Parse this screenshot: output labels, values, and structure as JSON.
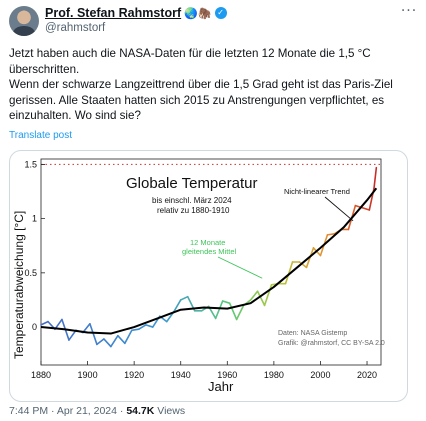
{
  "author": {
    "name": "Prof. Stefan Rahmstorf",
    "emoji": "🌏🦣",
    "verified_icon": "verified-badge-icon",
    "handle": "@rahmstorf"
  },
  "more_icon": "more-options-icon",
  "tweet": {
    "paragraph1": "Jetzt haben auch die NASA-Daten für die letzten 12 Monate die 1,5 °C überschritten.",
    "paragraph2": "Wenn der schwarze Langzeittrend über die 1,5 Grad geht ist das Paris-Ziel gerissen. Alle Staaten hatten sich 2015 zu Anstrengungen verpflichtet, es einzuhalten. Wo sind sie?"
  },
  "translate_label": "Translate post",
  "footer": {
    "time": "7:44 PM · Apr 21, 2024 · ",
    "views_count": "54.7K",
    "views_label": " Views"
  },
  "colors": {
    "link": "#1d9bf0",
    "secondary_text": "#536471",
    "trend_line": "#000000",
    "reference_line": "#d0312d",
    "annotation_green": "#3ec45a"
  },
  "chart_data": {
    "type": "line",
    "title": "Globale Temperatur",
    "subtitle": [
      "bis einschl. März 2024",
      "relativ zu 1880-1910"
    ],
    "xlabel": "Jahr",
    "ylabel": "Temperaturabweichung [°C]",
    "xlim": [
      1880,
      2026
    ],
    "ylim": [
      -0.35,
      1.55
    ],
    "x_ticks": [
      1880,
      1900,
      1920,
      1940,
      1960,
      1980,
      2000,
      2020
    ],
    "y_ticks": [
      0,
      0.5,
      1,
      1.5
    ],
    "y_tick_labels": [
      "0",
      "0.5",
      "1",
      "1.5"
    ],
    "reference_line": {
      "value": 1.5,
      "style": "dotted"
    },
    "annotations": {
      "moving_avg": [
        "12 Monate",
        "gleitendes Mittel"
      ],
      "trend": "Nicht-linearer Trend",
      "source": [
        "Daten: NASA Gistemp",
        "Grafik: @rahmstorf, CC BY-SA 2.0"
      ]
    },
    "series": [
      {
        "x": [
          1880,
          1883,
          1886,
          1889,
          1892,
          1895,
          1898,
          1901,
          1904,
          1907,
          1910,
          1913,
          1916,
          1919,
          1922,
          1925,
          1928,
          1931,
          1934,
          1937,
          1940,
          1943,
          1946,
          1949,
          1952,
          1955,
          1958,
          1961,
          1964,
          1967,
          1970,
          1973,
          1976,
          1979,
          1982,
          1985,
          1988,
          1991,
          1994,
          1997,
          2000,
          2003,
          2006,
          2009,
          2012,
          2015,
          2018,
          2021,
          2023,
          2024
        ],
        "values": [
          0.02,
          0.05,
          -0.02,
          0.07,
          -0.12,
          -0.03,
          -0.05,
          0.03,
          -0.16,
          -0.11,
          -0.18,
          -0.08,
          -0.15,
          -0.03,
          -0.02,
          0.02,
          0.0,
          0.1,
          0.05,
          0.14,
          0.25,
          0.28,
          0.15,
          0.15,
          0.19,
          0.08,
          0.24,
          0.22,
          0.07,
          0.2,
          0.25,
          0.33,
          0.2,
          0.39,
          0.4,
          0.4,
          0.6,
          0.6,
          0.55,
          0.73,
          0.66,
          0.85,
          0.86,
          0.9,
          0.9,
          1.12,
          1.1,
          1.08,
          1.28,
          1.47
        ]
      },
      {
        "x": [
          1880,
          1890,
          1900,
          1910,
          1920,
          1930,
          1940,
          1950,
          1960,
          1970,
          1980,
          1990,
          2000,
          2010,
          2020,
          2024
        ],
        "values": [
          0.0,
          -0.02,
          -0.05,
          -0.06,
          0.0,
          0.08,
          0.16,
          0.18,
          0.17,
          0.22,
          0.37,
          0.55,
          0.73,
          0.92,
          1.17,
          1.28
        ]
      }
    ]
  }
}
